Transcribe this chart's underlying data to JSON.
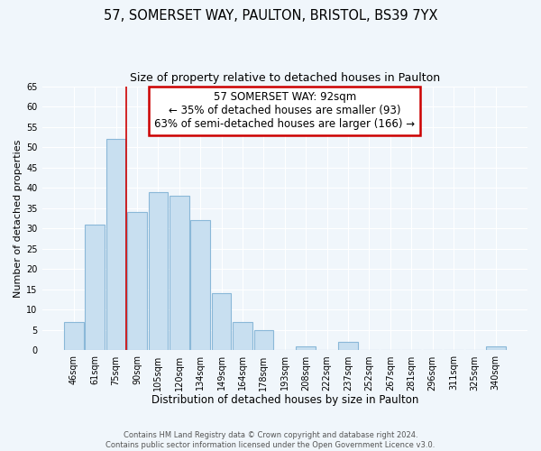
{
  "title": "57, SOMERSET WAY, PAULTON, BRISTOL, BS39 7YX",
  "subtitle": "Size of property relative to detached houses in Paulton",
  "xlabel": "Distribution of detached houses by size in Paulton",
  "ylabel": "Number of detached properties",
  "bar_labels": [
    "46sqm",
    "61sqm",
    "75sqm",
    "90sqm",
    "105sqm",
    "120sqm",
    "134sqm",
    "149sqm",
    "164sqm",
    "178sqm",
    "193sqm",
    "208sqm",
    "222sqm",
    "237sqm",
    "252sqm",
    "267sqm",
    "281sqm",
    "296sqm",
    "311sqm",
    "325sqm",
    "340sqm"
  ],
  "bar_heights": [
    7,
    31,
    52,
    34,
    39,
    38,
    32,
    14,
    7,
    5,
    0,
    1,
    0,
    2,
    0,
    0,
    0,
    0,
    0,
    0,
    1
  ],
  "bar_color": "#c8dff0",
  "bar_edge_color": "#8ab8d8",
  "annotation_box_text": "57 SOMERSET WAY: 92sqm\n← 35% of detached houses are smaller (93)\n63% of semi-detached houses are larger (166) →",
  "annotation_box_color": "#ffffff",
  "annotation_box_edge_color": "#cc0000",
  "property_line_x": 2.5,
  "ylim": [
    0,
    65
  ],
  "yticks": [
    0,
    5,
    10,
    15,
    20,
    25,
    30,
    35,
    40,
    45,
    50,
    55,
    60,
    65
  ],
  "bg_color": "#f0f6fb",
  "footer_line1": "Contains HM Land Registry data © Crown copyright and database right 2024.",
  "footer_line2": "Contains public sector information licensed under the Open Government Licence v3.0.",
  "title_fontsize": 10.5,
  "subtitle_fontsize": 9,
  "xlabel_fontsize": 8.5,
  "ylabel_fontsize": 8,
  "tick_fontsize": 7,
  "footer_fontsize": 6,
  "annot_fontsize": 8.5
}
